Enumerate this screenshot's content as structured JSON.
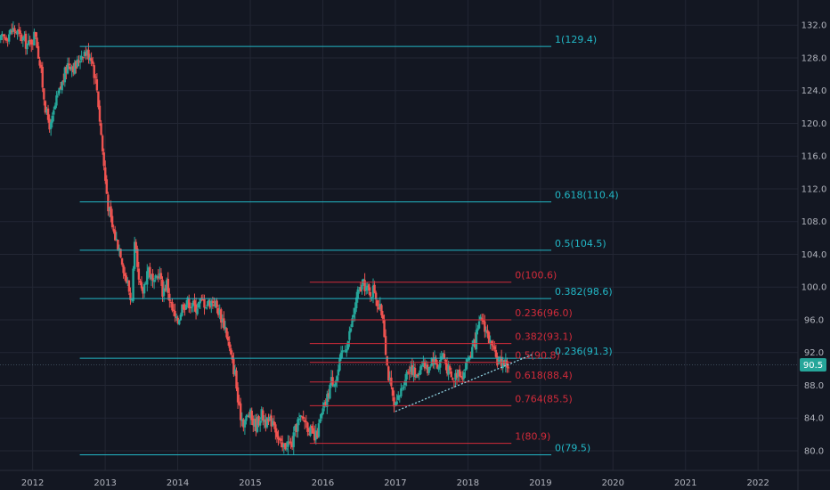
{
  "chart_data": {
    "type": "candlestick",
    "ylim": [
      77.6,
      134.2
    ],
    "xlim": [
      2011.55,
      2022.55
    ],
    "y_ticks": [
      "132.0",
      "128.0",
      "124.0",
      "120.0",
      "116.0",
      "112.0",
      "108.0",
      "104.0",
      "100.0",
      "96.0",
      "92.0",
      "88.0",
      "84.0",
      "80.0"
    ],
    "x_ticks": [
      "2012",
      "2013",
      "2014",
      "2015",
      "2016",
      "2017",
      "2018",
      "2019",
      "2020",
      "2021",
      "2022"
    ],
    "last_price": "90.5",
    "price_path": [
      [
        2011.55,
        130.0
      ],
      [
        2011.75,
        131.5
      ],
      [
        2011.95,
        129.5
      ],
      [
        2012.05,
        131.0
      ],
      [
        2012.12,
        126.5
      ],
      [
        2012.2,
        121.0
      ],
      [
        2012.26,
        119.5
      ],
      [
        2012.33,
        122.5
      ],
      [
        2012.42,
        125.0
      ],
      [
        2012.5,
        127.5
      ],
      [
        2012.6,
        126.8
      ],
      [
        2012.7,
        128.8
      ],
      [
        2012.82,
        128.3
      ],
      [
        2012.9,
        124.0
      ],
      [
        2013.0,
        114.0
      ],
      [
        2013.05,
        110.0
      ],
      [
        2013.1,
        107.5
      ],
      [
        2013.15,
        106.0
      ],
      [
        2013.22,
        104.5
      ],
      [
        2013.28,
        101.5
      ],
      [
        2013.33,
        100.0
      ],
      [
        2013.37,
        98.0
      ],
      [
        2013.42,
        105.5
      ],
      [
        2013.46,
        101.0
      ],
      [
        2013.52,
        99.0
      ],
      [
        2013.6,
        102.5
      ],
      [
        2013.68,
        100.0
      ],
      [
        2013.75,
        102.0
      ],
      [
        2013.8,
        99.5
      ],
      [
        2013.86,
        100.5
      ],
      [
        2013.92,
        97.5
      ],
      [
        2014.0,
        95.5
      ],
      [
        2014.08,
        98.0
      ],
      [
        2014.17,
        98.2
      ],
      [
        2014.25,
        97.5
      ],
      [
        2014.33,
        98.3
      ],
      [
        2014.42,
        98.0
      ],
      [
        2014.5,
        98.4
      ],
      [
        2014.58,
        97.0
      ],
      [
        2014.67,
        95.0
      ],
      [
        2014.75,
        91.0
      ],
      [
        2014.8,
        89.5
      ],
      [
        2014.85,
        85.0
      ],
      [
        2014.92,
        83.5
      ],
      [
        2015.0,
        84.5
      ],
      [
        2015.08,
        83.0
      ],
      [
        2015.16,
        84.5
      ],
      [
        2015.25,
        83.2
      ],
      [
        2015.33,
        84.0
      ],
      [
        2015.4,
        81.2
      ],
      [
        2015.45,
        80.2
      ],
      [
        2015.52,
        81.0
      ],
      [
        2015.58,
        80.6
      ],
      [
        2015.66,
        83.5
      ],
      [
        2015.75,
        84.0
      ],
      [
        2015.83,
        82.5
      ],
      [
        2015.9,
        81.3
      ],
      [
        2015.96,
        83.0
      ],
      [
        2016.0,
        84.5
      ],
      [
        2016.06,
        86.0
      ],
      [
        2016.12,
        88.5
      ],
      [
        2016.2,
        89.0
      ],
      [
        2016.28,
        92.0
      ],
      [
        2016.36,
        93.5
      ],
      [
        2016.44,
        97.0
      ],
      [
        2016.5,
        99.5
      ],
      [
        2016.58,
        100.3
      ],
      [
        2016.65,
        99.2
      ],
      [
        2016.72,
        99.8
      ],
      [
        2016.78,
        97.5
      ],
      [
        2016.84,
        96.5
      ],
      [
        2016.9,
        90.0
      ],
      [
        2016.96,
        87.0
      ],
      [
        2017.0,
        84.8
      ],
      [
        2017.06,
        86.5
      ],
      [
        2017.14,
        89.0
      ],
      [
        2017.22,
        90.5
      ],
      [
        2017.3,
        88.8
      ],
      [
        2017.38,
        91.2
      ],
      [
        2017.44,
        89.8
      ],
      [
        2017.52,
        91.5
      ],
      [
        2017.6,
        90.3
      ],
      [
        2017.66,
        92.0
      ],
      [
        2017.72,
        90.2
      ],
      [
        2017.8,
        88.5
      ],
      [
        2017.88,
        90.0
      ],
      [
        2017.94,
        89.3
      ],
      [
        2018.0,
        91.0
      ],
      [
        2018.08,
        92.5
      ],
      [
        2018.16,
        95.0
      ],
      [
        2018.2,
        96.2
      ],
      [
        2018.26,
        94.8
      ],
      [
        2018.32,
        93.0
      ],
      [
        2018.38,
        91.5
      ],
      [
        2018.44,
        90.8
      ],
      [
        2018.5,
        91.0
      ],
      [
        2018.55,
        90.5
      ]
    ],
    "fib_teal": [
      {
        "label": "1(129.4)",
        "value": 129.4
      },
      {
        "label": "0.618(110.4)",
        "value": 110.4
      },
      {
        "label": "0.5(104.5)",
        "value": 104.5
      },
      {
        "label": "0.382(98.6)",
        "value": 98.6
      },
      {
        "label": "0.236(91.3)",
        "value": 91.3
      },
      {
        "label": "0(79.5)",
        "value": 79.5
      }
    ],
    "fib_red": [
      {
        "label": "0(100.6)",
        "value": 100.6
      },
      {
        "label": "0.236(96.0)",
        "value": 96.0
      },
      {
        "label": "0.382(93.1)",
        "value": 93.1
      },
      {
        "label": "0.5(90.8)",
        "value": 90.8
      },
      {
        "label": "0.618(88.4)",
        "value": 88.4
      },
      {
        "label": "0.764(85.5)",
        "value": 85.5
      },
      {
        "label": "1(80.9)",
        "value": 80.9
      }
    ],
    "fib_teal_range": [
      2012.65,
      2019.15
    ],
    "fib_red_range": [
      2015.82,
      2018.6
    ],
    "trendline": {
      "x0": 2017.0,
      "y0": 84.8,
      "x1": 2018.9,
      "y1": 91.8
    },
    "colors": {
      "background": "#131722",
      "grid": "#232734",
      "up": "#26a69a",
      "down": "#ef5350",
      "fib_teal": "#22b8c7",
      "fib_red": "#d22b3a",
      "trendline": "#8fd1e0",
      "price_badge": "#26a69a"
    }
  }
}
